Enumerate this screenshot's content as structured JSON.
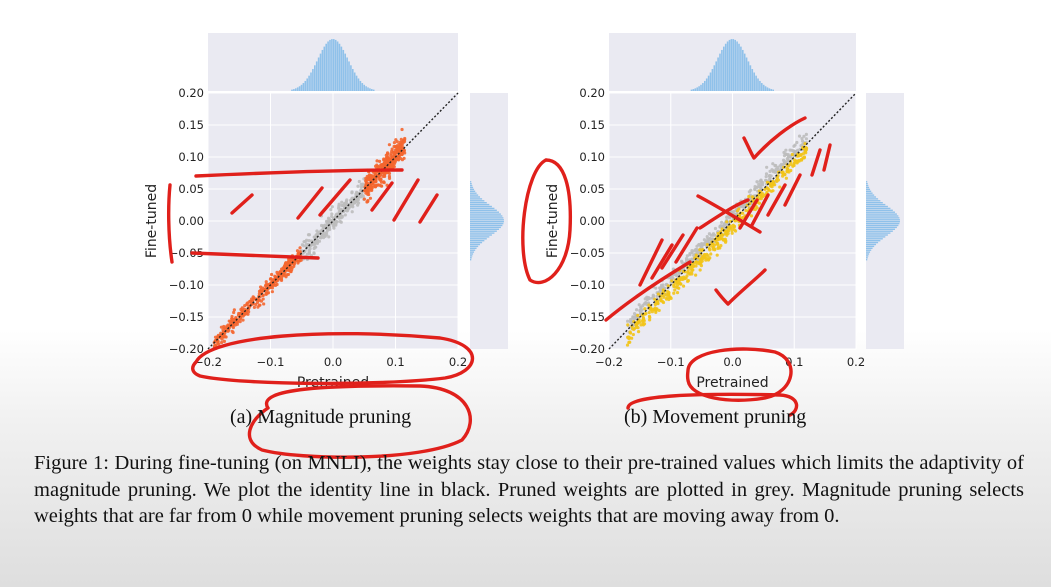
{
  "chart_data": [
    {
      "type": "scatter",
      "subcaption": "(a) Magnitude pruning",
      "xlabel": "Pretrained",
      "ylabel": "Fine-tuned",
      "xlim": [
        -0.2,
        0.2
      ],
      "ylim": [
        -0.2,
        0.2
      ],
      "xticks": [
        "−0.2",
        "−0.1",
        "0.0",
        "0.1",
        "0.2"
      ],
      "yticks": [
        "0.20",
        "0.15",
        "0.10",
        "0.05",
        "0.00",
        "−0.05",
        "−0.10",
        "−0.15",
        "−0.20"
      ],
      "identity_line": true,
      "grid": true,
      "marginal_histograms": [
        "top",
        "right"
      ],
      "series": [
        {
          "color": "#bdbdbd",
          "x_range": [
            -0.05,
            0.05
          ],
          "spread": 0.008
        },
        {
          "color": "#f4662f",
          "x_range": [
            -0.19,
            -0.05
          ],
          "spread": 0.006
        },
        {
          "color": "#f4662f",
          "x_range": [
            0.05,
            0.115
          ],
          "spread": 0.01
        }
      ]
    },
    {
      "type": "scatter",
      "subcaption": "(b) Movement pruning",
      "xlabel": "Pretrained",
      "ylabel": "Fine-tuned",
      "xlim": [
        -0.2,
        0.2
      ],
      "ylim": [
        -0.2,
        0.2
      ],
      "xticks": [
        "−0.2",
        "−0.1",
        "0.0",
        "0.1",
        "0.2"
      ],
      "yticks": [
        "0.20",
        "0.15",
        "0.10",
        "0.05",
        "0.00",
        "−0.05",
        "−0.10",
        "−0.15",
        "−0.20"
      ],
      "identity_line": true,
      "grid": true,
      "marginal_histograms": [
        "top",
        "right"
      ],
      "series": [
        {
          "color": "#bdbdbd",
          "x_range": [
            -0.17,
            0.12
          ],
          "offset": 0.008,
          "spread": 0.006
        },
        {
          "color": "#f2c418",
          "x_range": [
            -0.17,
            0.12
          ],
          "offset": -0.008,
          "spread": 0.007
        }
      ]
    }
  ],
  "caption": "Figure 1: During fine-tuning (on MNLI), the weights stay close to their pre-trained values which limits the adaptivity of magnitude pruning. We plot the identity line in black. Pruned weights are plotted in grey. Magnitude pruning selects weights that are far from 0 while movement pruning selects weights that are moving away from 0.",
  "colors": {
    "pruned": "#bdbdbd",
    "magnitude_kept": "#f4662f",
    "movement_kept": "#f2c418",
    "annotation_ink": "#e0201b",
    "histogram": "#8fc1ea",
    "panel_bg": "#eaeaf2"
  }
}
